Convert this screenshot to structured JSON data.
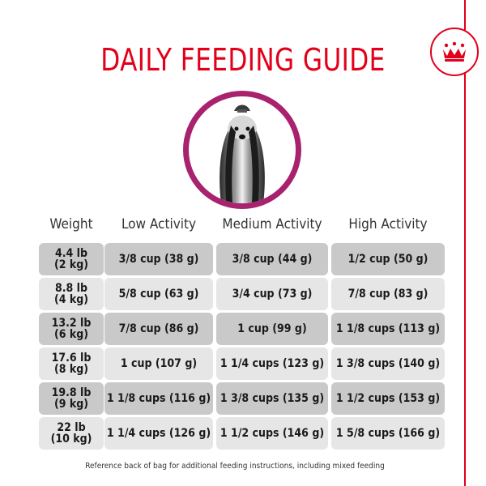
{
  "title": "DAILY FEEDING GUIDE",
  "headers": [
    "Weight",
    "Low Activity",
    "Medium Activity",
    "High Activity"
  ],
  "rows": [
    {
      "weight_lb": "4.4 lb",
      "weight_kg": "(2 kg)",
      "low": "3/8 cup (38 g)",
      "medium": "3/8 cup (44 g)",
      "high": "1/2 cup (50 g)"
    },
    {
      "weight_lb": "8.8 lb",
      "weight_kg": "(4 kg)",
      "low": "5/8 cup (63 g)",
      "medium": "3/4 cup (73 g)",
      "high": "7/8 cup (83 g)"
    },
    {
      "weight_lb": "13.2 lb",
      "weight_kg": "(6 kg)",
      "low": "7/8 cup (86 g)",
      "medium": "1 cup (99 g)",
      "high": "1 1/8 cups (113 g)"
    },
    {
      "weight_lb": "17.6 lb",
      "weight_kg": "(8 kg)",
      "low": "1 cup (107 g)",
      "medium": "1 1/4 cups (123 g)",
      "high": "1 3/8 cups (140 g)"
    },
    {
      "weight_lb": "19.8 lb",
      "weight_kg": "(9 kg)",
      "low": "1 1/8 cups (116 g)",
      "medium": "1 3/8 cups (135 g)",
      "high": "1 1/2 cups (153 g)"
    },
    {
      "weight_lb": "22 lb",
      "weight_kg": "(10 kg)",
      "low": "1 1/4 cups (126 g)",
      "medium": "1 1/2 cups (146 g)",
      "high": "1 5/8 cups (166 g)"
    }
  ],
  "footer": "Reference back of bag for additional feeding instructions, including mixed feeding",
  "colors": {
    "brand_red": "#e2001a",
    "circle_border": "#a8226e",
    "row_dark": "#c9c9ca",
    "row_light": "#e6e6e7"
  },
  "icons": {
    "brand": "crown-icon",
    "photo": "dog-photo"
  }
}
